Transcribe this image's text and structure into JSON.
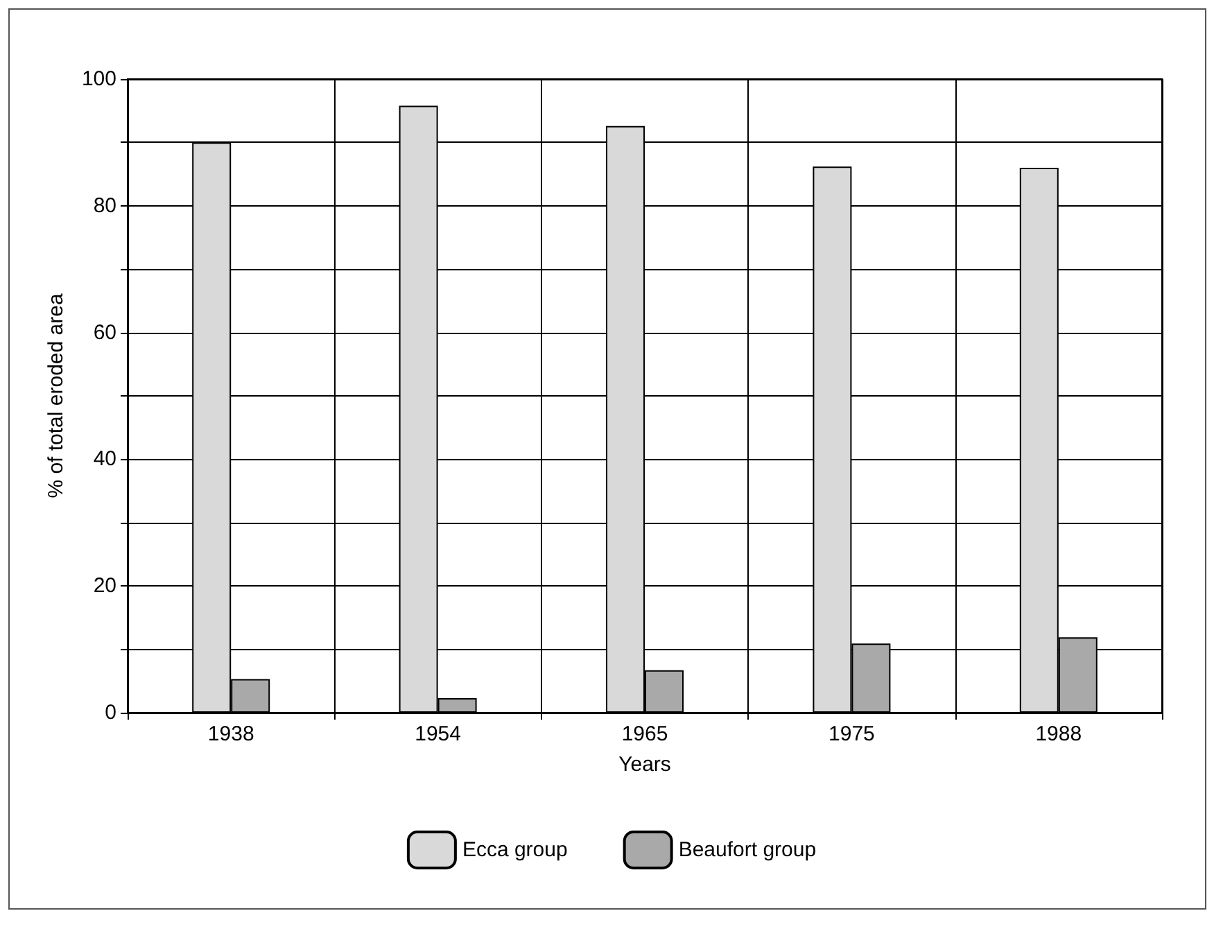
{
  "chart_data": {
    "type": "bar",
    "xlabel": "Years",
    "ylabel": "% of total eroded area",
    "categories": [
      "1938",
      "1954",
      "1965",
      "1975",
      "1988"
    ],
    "series": [
      {
        "name": "Ecca group",
        "color": "#d9d9d9",
        "values": [
          90,
          95.8,
          92.6,
          86.2,
          86
        ]
      },
      {
        "name": "Beaufort group",
        "color": "#a9a9a9",
        "values": [
          5.3,
          2.3,
          6.7,
          10.9,
          11.9
        ]
      }
    ],
    "ylim": [
      0,
      100
    ],
    "yticks": [
      0,
      {
        "value": 10,
        "label": null
      },
      20,
      {
        "value": 30,
        "label": null
      },
      40,
      {
        "value": 50,
        "label": null
      },
      60,
      {
        "value": 70,
        "label": null
      },
      80,
      {
        "value": 90,
        "label": null
      },
      100
    ],
    "grid": true,
    "legend": "bottom"
  }
}
